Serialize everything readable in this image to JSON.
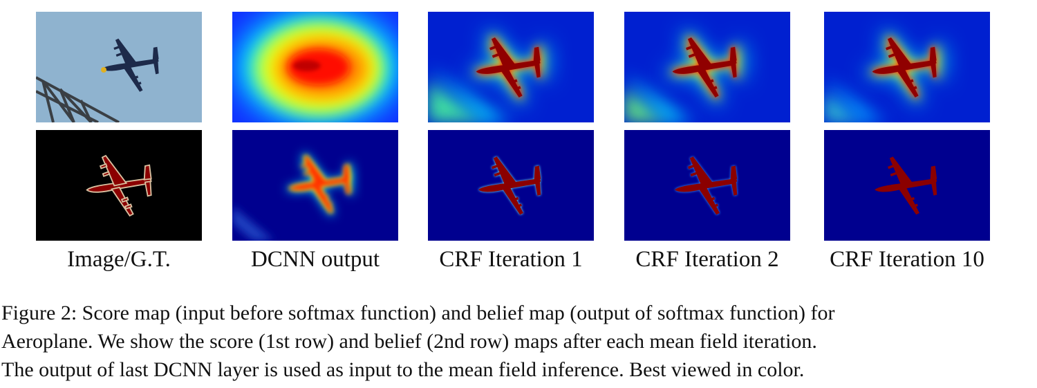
{
  "figure": {
    "columns": [
      {
        "label": "Image/G.T."
      },
      {
        "label": "DCNN output"
      },
      {
        "label": "CRF Iteration 1"
      },
      {
        "label": "CRF Iteration 2"
      },
      {
        "label": "CRF Iteration 10"
      }
    ],
    "rows": [
      "score map",
      "belief map"
    ],
    "colors": {
      "jet_dark_blue": "#00008f",
      "jet_blue": "#0010ff",
      "jet_cyan": "#00ffff",
      "jet_yellow": "#ffff00",
      "jet_red": "#ff0000",
      "jet_dark_red": "#800000",
      "sky": "#8fb3cf",
      "gt_background": "#000000",
      "gt_object": "#8b0000"
    }
  },
  "caption": {
    "line1": "Figure 2: Score map (input before softmax function) and belief map (output of softmax function) for",
    "line2": "Aeroplane.  We show the score (1st row) and belief (2nd row) maps after each mean field iteration.",
    "line3": "The output of last DCNN layer is used as input to the mean field inference. Best viewed in color."
  }
}
